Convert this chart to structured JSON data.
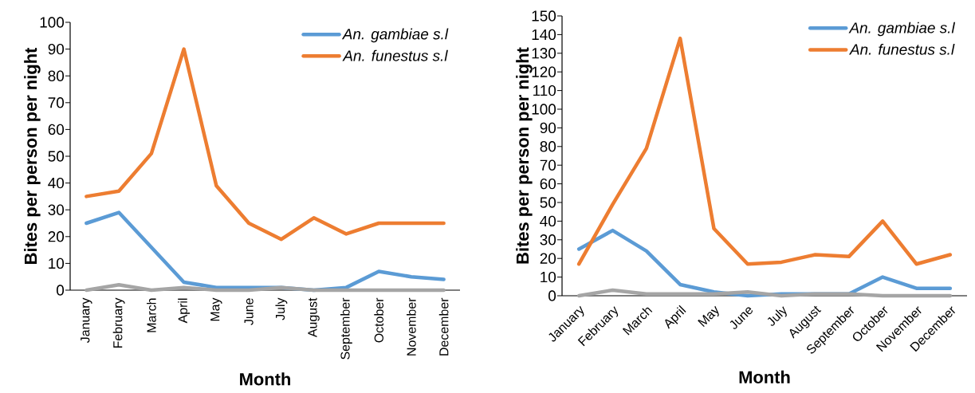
{
  "chart_data": [
    {
      "type": "line",
      "xlabel": "Month",
      "ylabel": "Bites per person per night",
      "categories": [
        "January",
        "February",
        "March",
        "April",
        "May",
        "June",
        "July",
        "August",
        "September",
        "October",
        "November",
        "December"
      ],
      "series": [
        {
          "name": "An. gambiae s.l",
          "color": "#5b9bd5",
          "values": [
            25,
            29,
            16,
            3,
            1,
            1,
            1,
            0,
            1,
            7,
            5,
            4
          ]
        },
        {
          "name": "An. funestus s.l",
          "color": "#ed7d31",
          "values": [
            35,
            37,
            51,
            90,
            39,
            25,
            19,
            27,
            21,
            25,
            25,
            25
          ]
        },
        {
          "color": "#a5a5a5",
          "values": [
            0,
            2,
            0,
            1,
            0,
            0,
            1,
            0,
            0,
            0,
            0,
            0
          ]
        }
      ],
      "ylim": [
        0,
        100
      ],
      "yticks": [
        0,
        10,
        20,
        30,
        40,
        50,
        60,
        70,
        80,
        90,
        100
      ],
      "grid": false,
      "legend": "top right",
      "marker": "none",
      "line_style": "solid"
    },
    {
      "type": "line",
      "xlabel": "Month",
      "ylabel": "Bites per person per night",
      "categories": [
        "January",
        "February",
        "March",
        "April",
        "May",
        "June",
        "July",
        "August",
        "September",
        "October",
        "November",
        "December"
      ],
      "series": [
        {
          "name": "An. gambiae s.l",
          "color": "#5b9bd5",
          "values": [
            25,
            35,
            24,
            6,
            2,
            0,
            1,
            1,
            1,
            10,
            4,
            4
          ]
        },
        {
          "name": "An. funestus s.l",
          "color": "#ed7d31",
          "values": [
            17,
            49,
            79,
            138,
            36,
            17,
            18,
            22,
            21,
            40,
            17,
            22
          ]
        },
        {
          "color": "#a5a5a5",
          "values": [
            0,
            3,
            1,
            1,
            1,
            2,
            0,
            1,
            1,
            0,
            0,
            0
          ]
        }
      ],
      "ylim": [
        0,
        150
      ],
      "yticks": [
        0,
        10,
        20,
        30,
        40,
        50,
        60,
        70,
        80,
        90,
        100,
        110,
        120,
        130,
        140,
        150
      ],
      "grid": false,
      "legend": "top right",
      "marker": "none",
      "line_style": "solid"
    }
  ]
}
